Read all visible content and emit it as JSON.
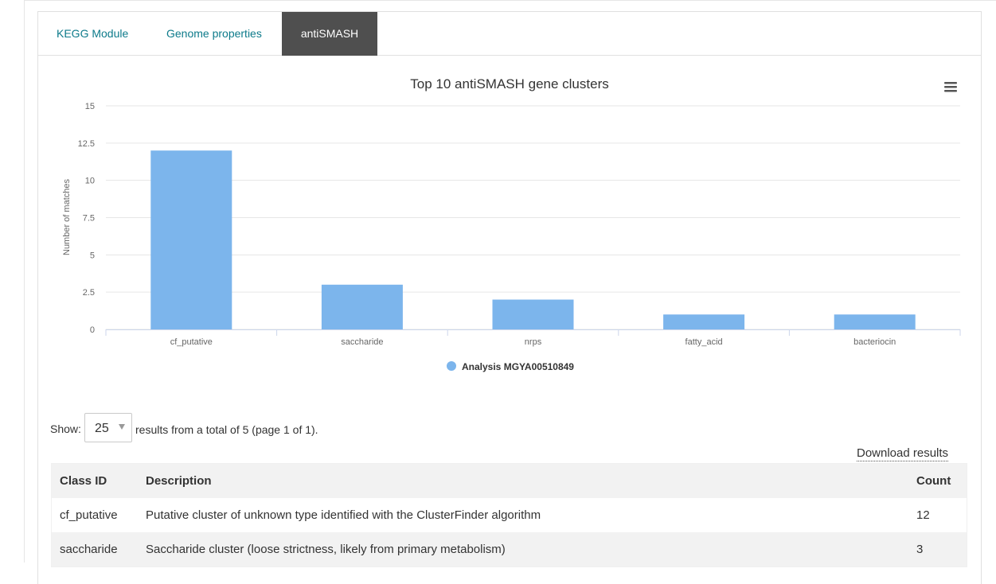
{
  "tabs": [
    {
      "label": "KEGG Module",
      "active": false
    },
    {
      "label": "Genome properties",
      "active": false
    },
    {
      "label": "antiSMASH",
      "active": true
    }
  ],
  "chart_menu_icon": "hamburger-menu-icon",
  "chart_data": {
    "type": "bar",
    "title": "Top 10 antiSMASH gene clusters",
    "xlabel": "",
    "ylabel": "Number of matches",
    "categories": [
      "cf_putative",
      "saccharide",
      "nrps",
      "fatty_acid",
      "bacteriocin"
    ],
    "series": [
      {
        "name": "Analysis MGYA00510849",
        "values": [
          12,
          3,
          2,
          1,
          1
        ],
        "color": "#7cb5ec"
      }
    ],
    "ylim": [
      0,
      15
    ],
    "yticks": [
      "0",
      "2.5",
      "5",
      "7.5",
      "10",
      "12.5",
      "15"
    ],
    "grid": true,
    "legend": "bottom-center"
  },
  "pagination": {
    "show_label": "Show:",
    "page_size": "25",
    "summary": "results from a total of 5 (page 1 of 1)."
  },
  "download_label": "Download results",
  "table": {
    "headers": [
      "Class ID",
      "Description",
      "Count"
    ],
    "rows": [
      [
        "cf_putative",
        "Putative cluster of unknown type identified with the ClusterFinder algorithm",
        "12"
      ],
      [
        "saccharide",
        "Saccharide cluster (loose strictness, likely from primary metabolism)",
        "3"
      ]
    ]
  }
}
